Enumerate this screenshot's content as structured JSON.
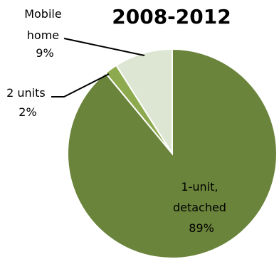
{
  "chart_data": {
    "type": "pie",
    "title": "2008-2012",
    "slices": [
      {
        "label_lines": [
          "1-unit,",
          "detached",
          "89%"
        ],
        "value": 89,
        "color": "#6a843b"
      },
      {
        "label_lines": [
          "2 units",
          "2%"
        ],
        "value": 2,
        "color": "#8daa4f"
      },
      {
        "label_lines": [
          "Mobile",
          "home",
          "9%"
        ],
        "value": 9,
        "color": "#dde6d3"
      }
    ],
    "legend": "none",
    "slice_border_color": "#ffffff"
  }
}
